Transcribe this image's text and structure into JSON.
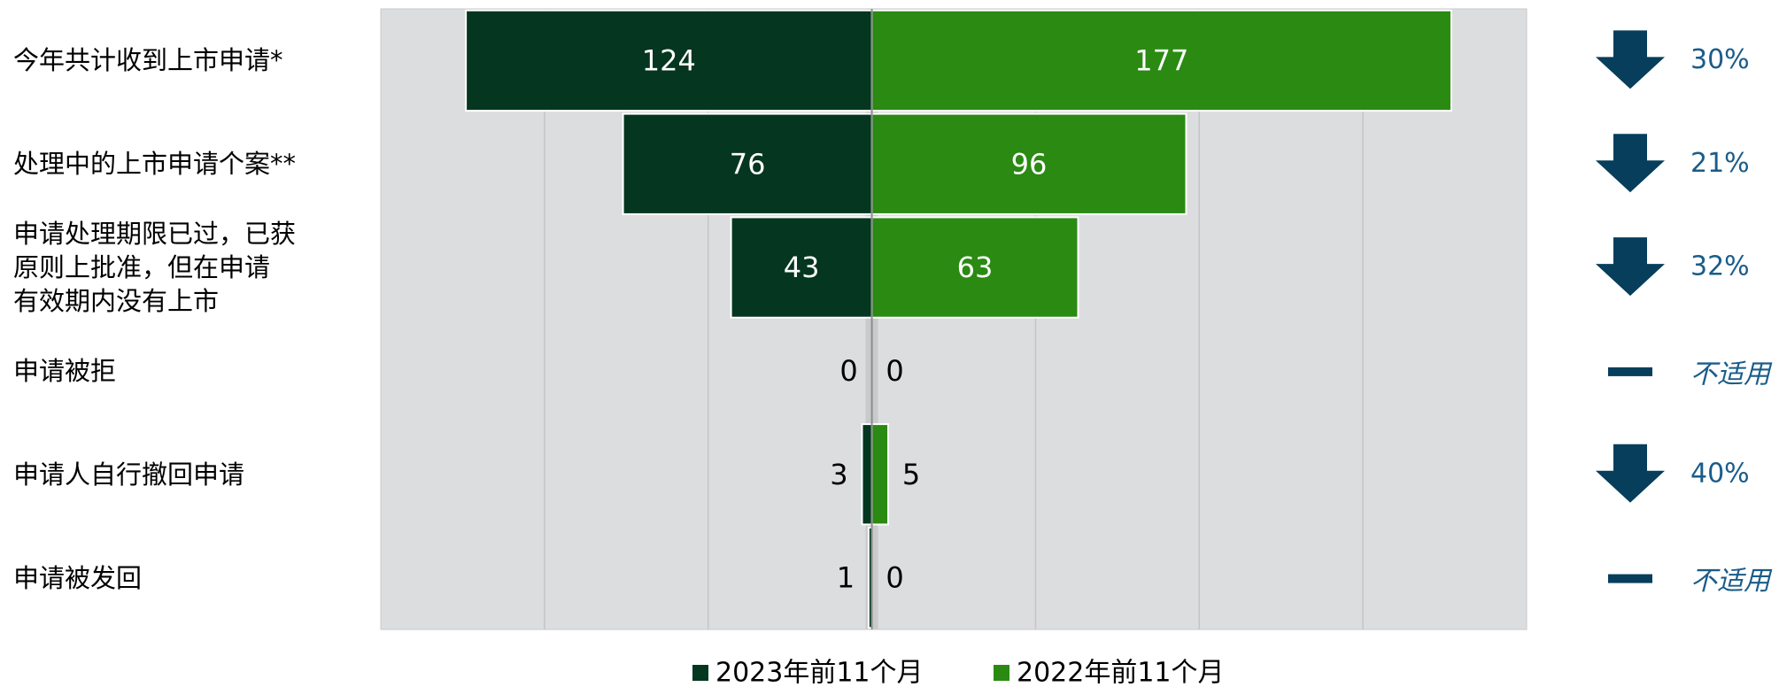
{
  "chart_data": {
    "type": "butterfly-bar",
    "categories": [
      "今年共计收到上市申请*",
      "处理中的上市申请个案**",
      "申请处理期限已过，已获\n原则上批准，但在申请\n有效期内没有上市",
      "申请被拒",
      "申请人自行撤回申请",
      "申请被发回"
    ],
    "series": [
      {
        "name": "2023年前11个月",
        "color": "#05361f",
        "side": "left",
        "values": [
          124,
          76,
          43,
          0,
          3,
          1
        ]
      },
      {
        "name": "2022年前11个月",
        "color": "#2a8a12",
        "side": "right",
        "values": [
          177,
          96,
          63,
          0,
          5,
          0
        ]
      }
    ],
    "xlim": [
      -150,
      200
    ],
    "xticks": [
      -100,
      -50,
      0,
      50,
      100,
      150
    ],
    "grid": true,
    "change_direction": [
      "down",
      "down",
      "down",
      "none",
      "down",
      "none"
    ],
    "change_labels": [
      "30%",
      "21%",
      "32%",
      "不适用",
      "40%",
      "不适用"
    ],
    "legend": "bottom"
  }
}
